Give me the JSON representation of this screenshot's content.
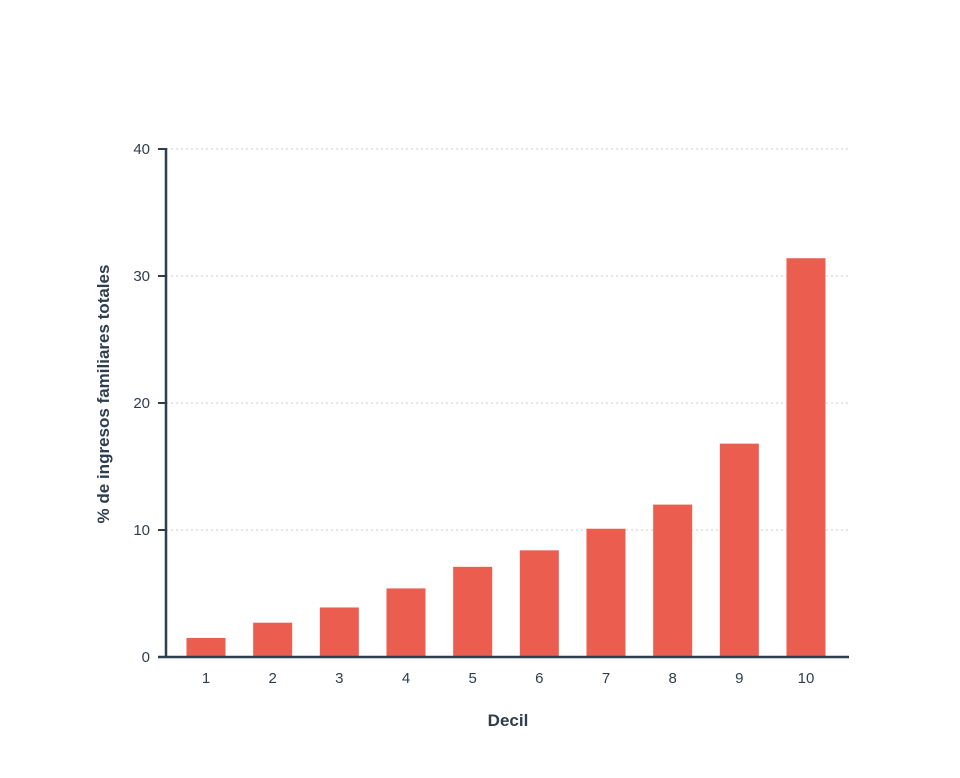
{
  "chart_data": {
    "type": "bar",
    "title": "",
    "xlabel": "Decil",
    "ylabel": "% de ingresos familiares totales",
    "categories": [
      "1",
      "2",
      "3",
      "4",
      "5",
      "6",
      "7",
      "8",
      "9",
      "10"
    ],
    "values": [
      1.5,
      2.7,
      3.9,
      5.4,
      7.1,
      8.4,
      10.1,
      12.0,
      16.8,
      31.4
    ],
    "ylim": [
      0,
      40
    ],
    "yticks": [
      0,
      10,
      20,
      30,
      40
    ],
    "grid": true,
    "bar_color": "#eb5e4f",
    "axis_color": "#2f3e4d"
  }
}
